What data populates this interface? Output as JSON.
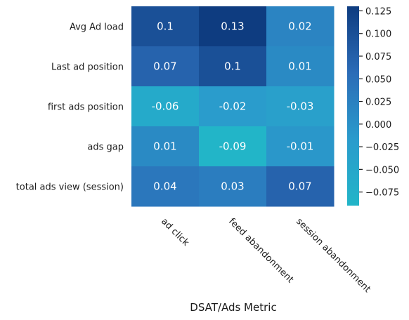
{
  "chart_data": {
    "type": "heatmap",
    "title": "",
    "xlabel": "DSAT/Ads Metric",
    "ylabel": "",
    "rows": [
      "Avg Ad load",
      "Last ad position",
      "first ads position",
      "ads gap",
      "total ads view (session)"
    ],
    "columns": [
      "ad click",
      "feed abandonment",
      "session abandonment"
    ],
    "values": [
      [
        0.1,
        0.13,
        0.02
      ],
      [
        0.07,
        0.1,
        0.01
      ],
      [
        -0.06,
        -0.02,
        -0.03
      ],
      [
        0.01,
        -0.09,
        -0.01
      ],
      [
        0.04,
        0.03,
        0.07
      ]
    ],
    "cell_labels": [
      [
        "0.1",
        "0.13",
        "0.02"
      ],
      [
        "0.07",
        "0.1",
        "0.01"
      ],
      [
        "-0.06",
        "-0.02",
        "-0.03"
      ],
      [
        "0.01",
        "-0.09",
        "-0.01"
      ],
      [
        "0.04",
        "0.03",
        "0.07"
      ]
    ],
    "colorbar": {
      "vmin": -0.09,
      "vmax": 0.13,
      "ticks": [
        0.125,
        0.1,
        0.075,
        0.05,
        0.025,
        0.0,
        -0.025,
        -0.05,
        -0.075
      ],
      "tick_labels": [
        "0.125",
        "0.100",
        "0.075",
        "0.050",
        "0.025",
        "0.000",
        "−0.025",
        "−0.050",
        "−0.075"
      ],
      "colors": [
        "#22b5c8",
        "#2a9bcc",
        "#2b6cb7",
        "#0e3c80"
      ]
    }
  }
}
